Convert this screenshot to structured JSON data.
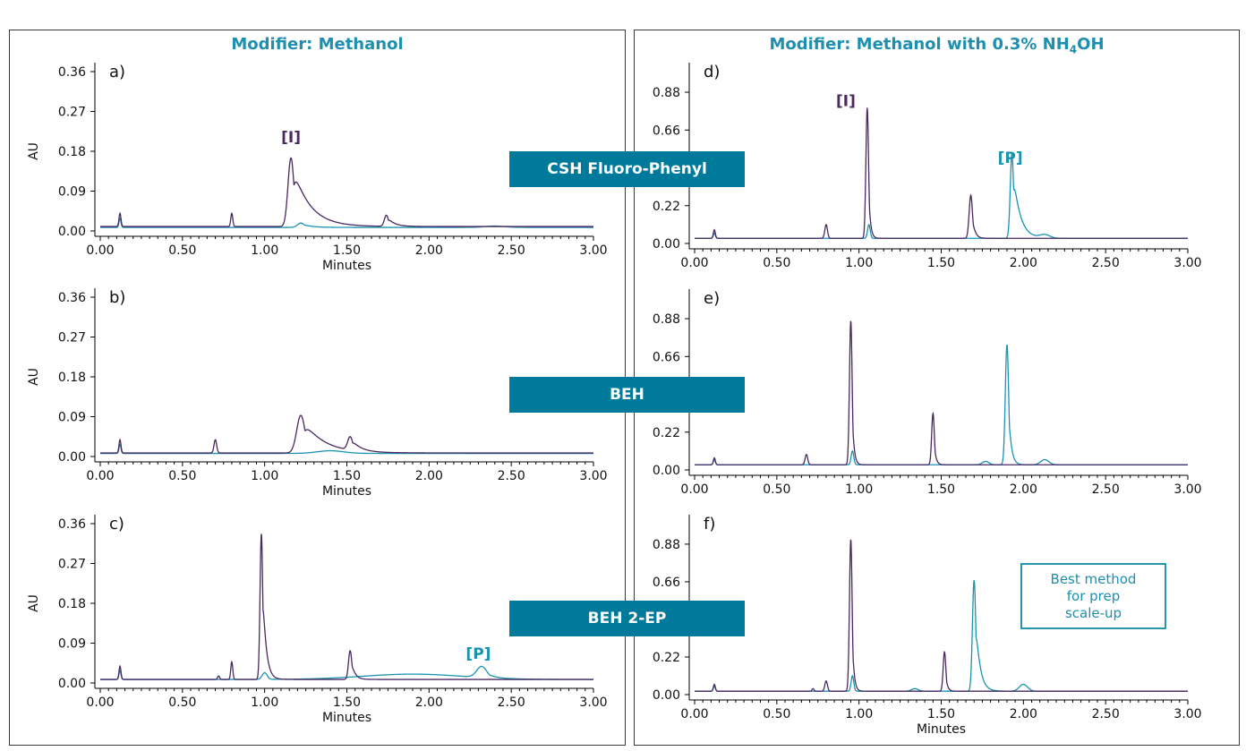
{
  "headings": {
    "left": "Modifier: Methanol",
    "right_pre": "Modifier: Methanol with 0.3% NH",
    "right_sub": "4",
    "right_post": "OH"
  },
  "column_bands": [
    {
      "label": "CSH Fluoro-Phenyl"
    },
    {
      "label": "BEH"
    },
    {
      "label": "BEH 2-EP"
    }
  ],
  "callout": {
    "line1": "Best method",
    "line2": "for prep",
    "line3": "scale-up"
  },
  "colors": {
    "purple": "#4a2860",
    "teal": "#1a93b0",
    "band": "#007a9a",
    "heading": "#1e8fae"
  },
  "chart_data": [
    {
      "id": "a",
      "panel_label": "a)",
      "type": "line",
      "xlabel": "Minutes",
      "ylabel": "AU",
      "xlim": [
        0,
        3.0
      ],
      "ylim": [
        0,
        0.36
      ],
      "x_ticks": [
        "0.00",
        "0.50",
        "1.00",
        "1.50",
        "2.00",
        "2.50",
        "3.00"
      ],
      "y_ticks": [
        "0.00",
        "0.09",
        "0.18",
        "0.27",
        "0.36"
      ],
      "y_tick_values": [
        0,
        0.09,
        0.18,
        0.27,
        0.36
      ],
      "annotations": [
        {
          "text": "[I]",
          "x": 1.16,
          "y": 0.2,
          "color": "purple"
        }
      ],
      "series": [
        {
          "color": "purple",
          "baseline": 0.01,
          "peaks": [
            [
              0.12,
              0.03,
              0.006
            ],
            [
              0.8,
              0.03,
              0.006
            ],
            [
              1.16,
              0.155,
              0.018,
              0.1
            ],
            [
              1.74,
              0.025,
              0.012,
              0.04
            ]
          ]
        },
        {
          "color": "teal",
          "baseline": 0.008,
          "peaks": [
            [
              0.12,
              0.02,
              0.006
            ],
            [
              1.22,
              0.01,
              0.02,
              0.05
            ],
            [
              2.4,
              0.003,
              0.06
            ]
          ]
        }
      ]
    },
    {
      "id": "b",
      "panel_label": "b)",
      "type": "line",
      "xlabel": "Minutes",
      "ylabel": "AU",
      "xlim": [
        0,
        3.0
      ],
      "ylim": [
        0,
        0.36
      ],
      "x_ticks": [
        "0.00",
        "0.50",
        "1.00",
        "1.50",
        "2.00",
        "2.50",
        "3.00"
      ],
      "y_ticks": [
        "0.00",
        "0.09",
        "0.18",
        "0.27",
        "0.36"
      ],
      "y_tick_values": [
        0,
        0.09,
        0.18,
        0.27,
        0.36
      ],
      "annotations": [],
      "series": [
        {
          "color": "purple",
          "baseline": 0.008,
          "peaks": [
            [
              0.12,
              0.03,
              0.006
            ],
            [
              0.7,
              0.03,
              0.008
            ],
            [
              1.22,
              0.085,
              0.025,
              0.12
            ],
            [
              1.52,
              0.03,
              0.015,
              0.05
            ]
          ]
        },
        {
          "color": "teal",
          "baseline": 0.007,
          "peaks": [
            [
              0.12,
              0.02,
              0.006
            ],
            [
              1.4,
              0.006,
              0.08
            ]
          ]
        }
      ]
    },
    {
      "id": "c",
      "panel_label": "c)",
      "type": "line",
      "xlabel": "Minutes",
      "ylabel": "AU",
      "xlim": [
        0,
        3.0
      ],
      "ylim": [
        0,
        0.36
      ],
      "x_ticks": [
        "0.00",
        "0.50",
        "1.00",
        "1.50",
        "2.00",
        "2.50",
        "3.00"
      ],
      "y_ticks": [
        "0.00",
        "0.09",
        "0.18",
        "0.27",
        "0.36"
      ],
      "y_tick_values": [
        0,
        0.09,
        0.18,
        0.27,
        0.36
      ],
      "annotations": [
        {
          "text": "[P]",
          "x": 2.3,
          "y": 0.055,
          "color": "teal"
        }
      ],
      "series": [
        {
          "color": "purple",
          "baseline": 0.008,
          "peaks": [
            [
              0.12,
              0.03,
              0.006
            ],
            [
              0.72,
              0.008,
              0.006
            ],
            [
              0.8,
              0.04,
              0.006
            ],
            [
              0.98,
              0.33,
              0.008,
              0.02
            ],
            [
              1.52,
              0.065,
              0.01,
              0.02
            ]
          ]
        },
        {
          "color": "teal",
          "baseline": 0.008,
          "peaks": [
            [
              0.12,
              0.02,
              0.006
            ],
            [
              1.0,
              0.015,
              0.015
            ],
            [
              1.9,
              0.012,
              0.3
            ],
            [
              2.32,
              0.025,
              0.03,
              0.04
            ]
          ]
        }
      ]
    },
    {
      "id": "d",
      "panel_label": "d)",
      "type": "line",
      "xlabel": "",
      "ylabel": "",
      "xlim": [
        0,
        3.0
      ],
      "ylim": [
        0,
        1.0
      ],
      "x_ticks": [
        "0.00",
        "0.50",
        "1.00",
        "1.50",
        "2.00",
        "2.50",
        "3.00"
      ],
      "y_ticks": [
        "0.00",
        "0.22",
        "0.66",
        "0.88"
      ],
      "y_tick_values": [
        0,
        0.22,
        0.66,
        0.88
      ],
      "annotations": [
        {
          "text": "[I]",
          "x": 0.92,
          "y": 0.8,
          "color": "purple"
        },
        {
          "text": "[P]",
          "x": 1.92,
          "y": 0.47,
          "color": "teal"
        }
      ],
      "series": [
        {
          "color": "purple",
          "baseline": 0.03,
          "peaks": [
            [
              0.12,
              0.05,
              0.006
            ],
            [
              0.8,
              0.08,
              0.008
            ],
            [
              1.05,
              0.76,
              0.008,
              0.01
            ],
            [
              1.68,
              0.25,
              0.01,
              0.015
            ]
          ]
        },
        {
          "color": "teal",
          "baseline": 0.03,
          "peaks": [
            [
              0.12,
              0.03,
              0.006
            ],
            [
              1.06,
              0.08,
              0.008
            ],
            [
              1.93,
              0.49,
              0.01,
              0.04
            ],
            [
              2.13,
              0.02,
              0.03
            ]
          ]
        }
      ]
    },
    {
      "id": "e",
      "panel_label": "e)",
      "type": "line",
      "xlabel": "",
      "ylabel": "",
      "xlim": [
        0,
        3.0
      ],
      "ylim": [
        0,
        1.0
      ],
      "x_ticks": [
        "0.00",
        "0.50",
        "1.00",
        "1.50",
        "2.00",
        "2.50",
        "3.00"
      ],
      "y_ticks": [
        "0.00",
        "0.22",
        "0.66",
        "0.88"
      ],
      "y_tick_values": [
        0,
        0.22,
        0.66,
        0.88
      ],
      "annotations": [],
      "series": [
        {
          "color": "purple",
          "baseline": 0.03,
          "peaks": [
            [
              0.12,
              0.04,
              0.006
            ],
            [
              0.68,
              0.06,
              0.008
            ],
            [
              0.95,
              0.84,
              0.008,
              0.01
            ],
            [
              1.45,
              0.3,
              0.008,
              0.01
            ]
          ]
        },
        {
          "color": "teal",
          "baseline": 0.03,
          "peaks": [
            [
              0.12,
              0.03,
              0.006
            ],
            [
              0.96,
              0.08,
              0.008
            ],
            [
              1.77,
              0.02,
              0.02
            ],
            [
              1.9,
              0.7,
              0.01,
              0.015
            ],
            [
              2.13,
              0.03,
              0.025
            ]
          ]
        }
      ]
    },
    {
      "id": "f",
      "panel_label": "f)",
      "type": "line",
      "xlabel": "Minutes",
      "ylabel": "",
      "xlim": [
        0,
        3.0
      ],
      "ylim": [
        0,
        1.0
      ],
      "x_ticks": [
        "0.00",
        "0.50",
        "1.00",
        "1.50",
        "2.00",
        "2.50",
        "3.00"
      ],
      "y_ticks": [
        "0.00",
        "0.22",
        "0.66",
        "0.88"
      ],
      "y_tick_values": [
        0,
        0.22,
        0.66,
        0.88
      ],
      "annotations": [],
      "series": [
        {
          "color": "purple",
          "baseline": 0.02,
          "peaks": [
            [
              0.12,
              0.04,
              0.006
            ],
            [
              0.72,
              0.015,
              0.006
            ],
            [
              0.8,
              0.06,
              0.008
            ],
            [
              0.95,
              0.89,
              0.008,
              0.01
            ],
            [
              1.52,
              0.23,
              0.008,
              0.01
            ]
          ]
        },
        {
          "color": "teal",
          "baseline": 0.02,
          "peaks": [
            [
              0.12,
              0.03,
              0.006
            ],
            [
              0.96,
              0.09,
              0.008
            ],
            [
              1.34,
              0.015,
              0.02
            ],
            [
              1.7,
              0.65,
              0.01,
              0.025
            ],
            [
              2.0,
              0.04,
              0.025
            ]
          ]
        }
      ]
    }
  ]
}
